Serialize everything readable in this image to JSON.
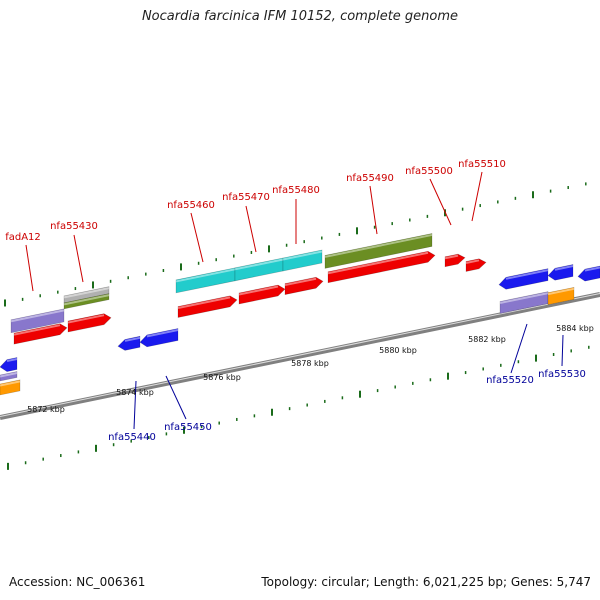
{
  "title": "Nocardia farcinica IFM 10152, complete genome",
  "footer": {
    "accession": "Accession: NC_006361",
    "stats": "Topology: circular; Length: 6,021,225 bp; Genes: 5,747"
  },
  "colors": {
    "forward_label": "#cc0000",
    "reverse_label": "#000099",
    "tick": "#1a6b1a",
    "backbone": "#808080",
    "cds": "#ee0000",
    "blue_gene": "#1a1aee",
    "purple_gene": "#8877cc",
    "cyan_gene": "#22cccc",
    "olive_gene": "#6b8e23",
    "gray_gene": "#b0b0b0",
    "orange_gene": "#ff9900"
  },
  "scale_labels": [
    "5872 kbp",
    "5874 kbp",
    "5876 kbp",
    "5878 kbp",
    "5880 kbp",
    "5882 kbp",
    "5884 kbp"
  ],
  "forward_labels": [
    "fadA12",
    "nfa55430",
    "nfa55460",
    "nfa55470",
    "nfa55480",
    "nfa55490",
    "nfa55500",
    "nfa55510"
  ],
  "reverse_labels": [
    "nfa55440",
    "nfa55450",
    "nfa55520",
    "nfa55530"
  ]
}
